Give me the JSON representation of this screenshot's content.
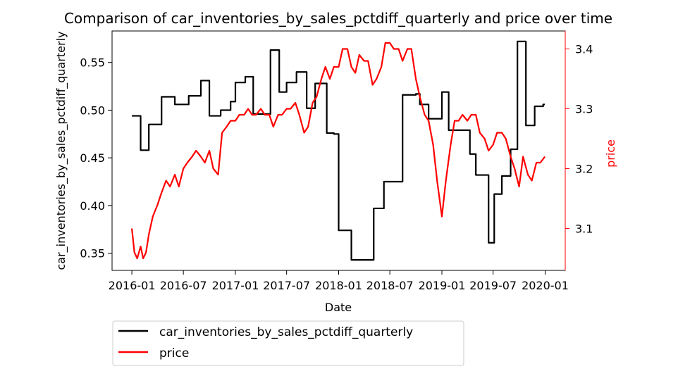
{
  "chart_data": {
    "type": "line",
    "title": "Comparison of car_inventories_by_sales_pctdiff_quarterly and price over time",
    "xlabel": "Date",
    "ylabel_left": "car_inventories_by_sales_pctdiff_quarterly",
    "ylabel_right": "price",
    "x_ticks": [
      "2016-01",
      "2016-07",
      "2017-01",
      "2017-07",
      "2018-01",
      "2018-07",
      "2019-01",
      "2019-07",
      "2020-01"
    ],
    "y_left_ticks": [
      "0.35",
      "0.40",
      "0.45",
      "0.50",
      "0.55"
    ],
    "y_right_ticks": [
      "3.1",
      "3.2",
      "3.3",
      "3.4"
    ],
    "xlim": [
      "2015-10-23",
      "2020-03-12"
    ],
    "ylim_left": [
      0.332,
      0.583
    ],
    "ylim_right": [
      3.03,
      3.43
    ],
    "grid": false,
    "legend_position": "below",
    "colors": {
      "left_series": "#000000",
      "right_series": "#ff0000",
      "right_axis": "#ff0000"
    },
    "series": [
      {
        "name": "car_inventories_by_sales_pctdiff_quarterly",
        "axis": "left",
        "color": "#000000",
        "x": [
          "2016-01-01",
          "2016-02-01",
          "2016-02-01",
          "2016-03-01",
          "2016-03-01",
          "2016-04-15",
          "2016-04-15",
          "2016-06-01",
          "2016-06-01",
          "2016-07-20",
          "2016-07-20",
          "2016-09-01",
          "2016-09-01",
          "2016-10-01",
          "2016-10-01",
          "2016-11-10",
          "2016-11-10",
          "2016-12-15",
          "2016-12-15",
          "2017-01-01",
          "2017-01-01",
          "2017-02-05",
          "2017-02-05",
          "2017-03-05",
          "2017-03-05",
          "2017-05-05",
          "2017-05-05",
          "2017-06-05",
          "2017-06-05",
          "2017-07-01",
          "2017-07-01",
          "2017-08-05",
          "2017-08-05",
          "2017-09-10",
          "2017-09-10",
          "2017-10-10",
          "2017-10-10",
          "2017-11-20",
          "2017-11-20",
          "2017-12-15",
          "2017-12-15",
          "2018-01-01",
          "2018-01-01",
          "2018-02-15",
          "2018-02-15",
          "2018-05-05",
          "2018-05-05",
          "2018-06-10",
          "2018-06-10",
          "2018-08-15",
          "2018-08-15",
          "2018-10-01",
          "2018-10-01",
          "2018-10-15",
          "2018-10-15",
          "2018-11-15",
          "2018-11-15",
          "2019-01-01",
          "2019-01-01",
          "2019-01-25",
          "2019-01-25",
          "2019-04-10",
          "2019-04-10",
          "2019-05-01",
          "2019-05-01",
          "2019-06-15",
          "2019-06-15",
          "2019-07-05",
          "2019-07-05",
          "2019-08-01",
          "2019-08-01",
          "2019-09-01",
          "2019-09-01",
          "2019-09-25",
          "2019-09-25",
          "2019-10-25",
          "2019-10-25",
          "2019-11-25",
          "2019-11-25",
          "2019-12-25",
          "2019-12-25",
          "2019-12-31"
        ],
        "values": [
          0.494,
          0.494,
          0.458,
          0.458,
          0.485,
          0.485,
          0.514,
          0.514,
          0.506,
          0.506,
          0.515,
          0.515,
          0.531,
          0.531,
          0.494,
          0.494,
          0.5,
          0.5,
          0.509,
          0.509,
          0.529,
          0.529,
          0.535,
          0.535,
          0.496,
          0.496,
          0.563,
          0.563,
          0.519,
          0.519,
          0.529,
          0.529,
          0.54,
          0.54,
          0.502,
          0.502,
          0.528,
          0.528,
          0.476,
          0.476,
          0.475,
          0.475,
          0.374,
          0.374,
          0.343,
          0.343,
          0.397,
          0.397,
          0.425,
          0.425,
          0.516,
          0.516,
          0.517,
          0.517,
          0.506,
          0.506,
          0.491,
          0.491,
          0.519,
          0.519,
          0.479,
          0.479,
          0.454,
          0.454,
          0.432,
          0.432,
          0.361,
          0.361,
          0.412,
          0.412,
          0.431,
          0.431,
          0.459,
          0.459,
          0.572,
          0.572,
          0.484,
          0.484,
          0.504,
          0.504,
          0.506,
          0.506
        ]
      },
      {
        "name": "price",
        "axis": "right",
        "color": "#ff0000",
        "x": [
          "2016-01-01",
          "2016-01-10",
          "2016-01-20",
          "2016-02-01",
          "2016-02-10",
          "2016-02-20",
          "2016-03-01",
          "2016-03-15",
          "2016-04-01",
          "2016-04-15",
          "2016-05-01",
          "2016-05-15",
          "2016-06-01",
          "2016-06-15",
          "2016-07-01",
          "2016-07-15",
          "2016-08-01",
          "2016-08-15",
          "2016-09-01",
          "2016-09-15",
          "2016-10-01",
          "2016-10-15",
          "2016-11-01",
          "2016-11-15",
          "2016-12-01",
          "2016-12-15",
          "2017-01-01",
          "2017-01-15",
          "2017-02-01",
          "2017-02-15",
          "2017-03-01",
          "2017-03-15",
          "2017-04-01",
          "2017-04-15",
          "2017-05-01",
          "2017-05-15",
          "2017-06-01",
          "2017-06-15",
          "2017-07-01",
          "2017-07-15",
          "2017-08-01",
          "2017-08-15",
          "2017-09-01",
          "2017-09-15",
          "2017-10-01",
          "2017-10-15",
          "2017-11-01",
          "2017-11-15",
          "2017-12-01",
          "2017-12-15",
          "2018-01-01",
          "2018-01-15",
          "2018-02-01",
          "2018-02-15",
          "2018-03-01",
          "2018-03-15",
          "2018-04-01",
          "2018-04-15",
          "2018-05-01",
          "2018-05-15",
          "2018-06-01",
          "2018-06-15",
          "2018-07-01",
          "2018-07-15",
          "2018-08-01",
          "2018-08-15",
          "2018-09-01",
          "2018-09-15",
          "2018-10-01",
          "2018-10-15",
          "2018-11-01",
          "2018-11-15",
          "2018-12-01",
          "2018-12-15",
          "2019-01-01",
          "2019-01-15",
          "2019-02-01",
          "2019-02-15",
          "2019-03-01",
          "2019-03-15",
          "2019-04-01",
          "2019-04-15",
          "2019-05-01",
          "2019-05-15",
          "2019-06-01",
          "2019-06-15",
          "2019-07-01",
          "2019-07-15",
          "2019-08-01",
          "2019-08-15",
          "2019-09-01",
          "2019-09-15",
          "2019-10-01",
          "2019-10-15",
          "2019-11-01",
          "2019-11-15",
          "2019-12-01",
          "2019-12-15",
          "2019-12-31"
        ],
        "values": [
          3.1,
          3.06,
          3.05,
          3.07,
          3.05,
          3.06,
          3.09,
          3.12,
          3.14,
          3.16,
          3.18,
          3.17,
          3.19,
          3.17,
          3.2,
          3.21,
          3.22,
          3.23,
          3.22,
          3.21,
          3.23,
          3.2,
          3.19,
          3.26,
          3.27,
          3.28,
          3.28,
          3.29,
          3.29,
          3.3,
          3.29,
          3.29,
          3.3,
          3.29,
          3.29,
          3.27,
          3.29,
          3.29,
          3.3,
          3.3,
          3.31,
          3.29,
          3.26,
          3.27,
          3.31,
          3.32,
          3.35,
          3.37,
          3.35,
          3.37,
          3.37,
          3.4,
          3.4,
          3.37,
          3.36,
          3.39,
          3.38,
          3.38,
          3.34,
          3.35,
          3.37,
          3.41,
          3.41,
          3.4,
          3.4,
          3.38,
          3.4,
          3.4,
          3.35,
          3.32,
          3.29,
          3.28,
          3.24,
          3.18,
          3.12,
          3.18,
          3.24,
          3.28,
          3.28,
          3.29,
          3.28,
          3.29,
          3.29,
          3.26,
          3.25,
          3.23,
          3.24,
          3.26,
          3.26,
          3.25,
          3.22,
          3.2,
          3.17,
          3.22,
          3.19,
          3.18,
          3.21,
          3.21,
          3.22
        ]
      }
    ]
  }
}
